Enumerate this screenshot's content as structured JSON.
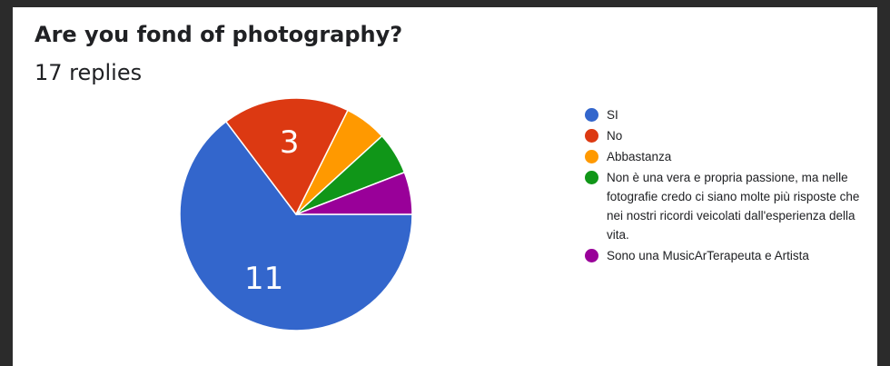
{
  "chart_data": {
    "type": "pie",
    "title": "Are you fond of photography?",
    "subtitle": "17 replies",
    "slices": [
      {
        "label": "SI",
        "value": 11,
        "color": "#3366cc",
        "data_label": "11"
      },
      {
        "label": "No",
        "value": 3,
        "color": "#dc3912",
        "data_label": "3"
      },
      {
        "label": "Abbastanza",
        "value": 1,
        "color": "#ff9900",
        "data_label": ""
      },
      {
        "label": "Non è una vera e propria passione, ma nelle fotografie credo ci siano molte più risposte che nei nostri ricordi veicolati dall'esperienza della vita.",
        "value": 1,
        "color": "#109618",
        "data_label": ""
      },
      {
        "label": "Sono una MusicArTerapeuta e Artista",
        "value": 1,
        "color": "#990099",
        "data_label": ""
      }
    ],
    "legend_position": "right"
  }
}
